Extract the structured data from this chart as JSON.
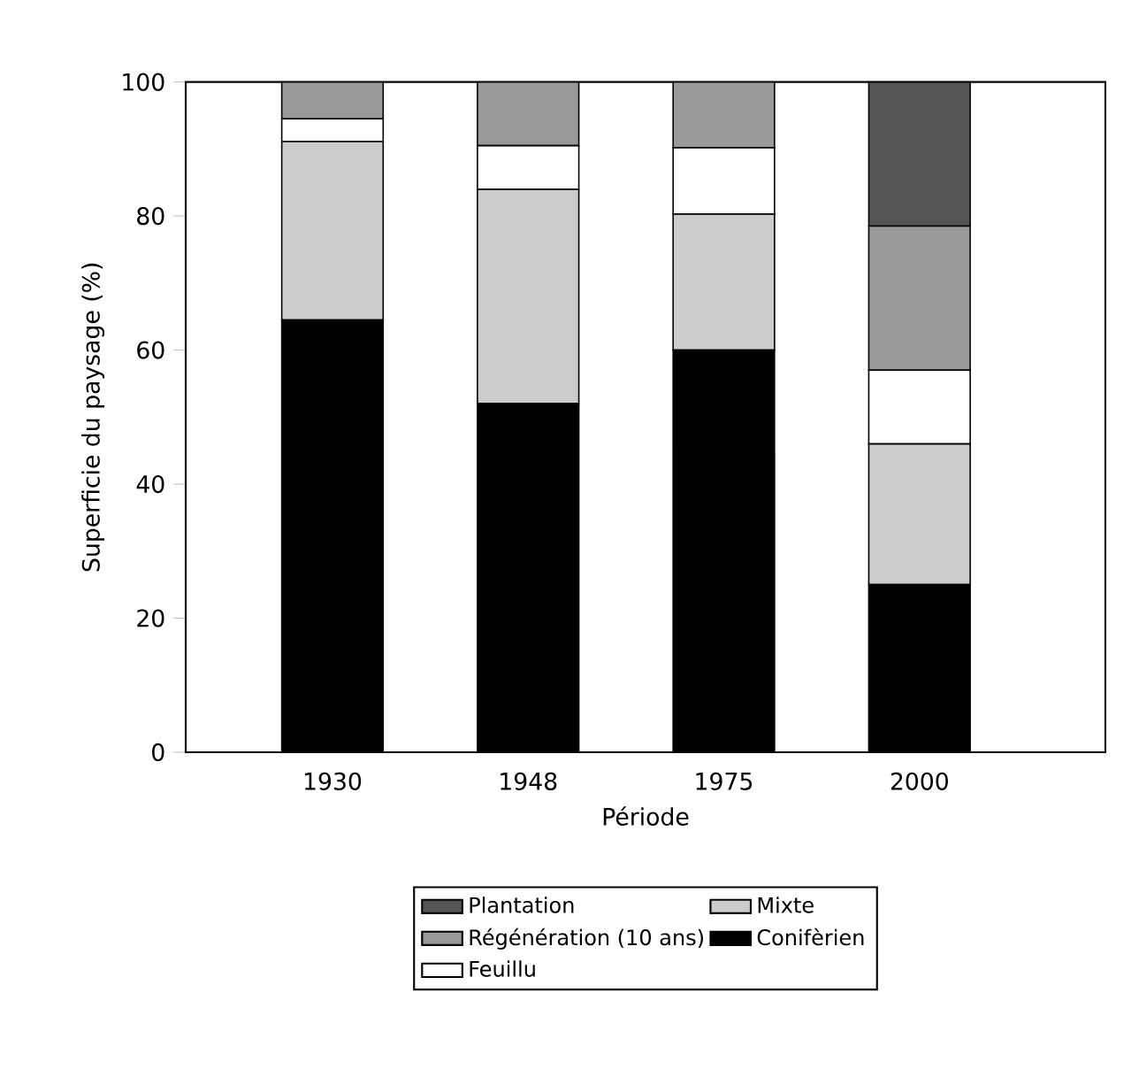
{
  "chart_data": {
    "type": "bar",
    "stacked": true,
    "xlabel": "Période",
    "ylabel": "Superficie du paysage (%)",
    "categories": [
      "1930",
      "1948",
      "1975",
      "2000"
    ],
    "series": [
      {
        "name": "Conifèrien",
        "color": "#000000",
        "values": [
          64.5,
          52,
          60,
          25
        ]
      },
      {
        "name": "Mixte",
        "color": "#cccccc",
        "values": [
          26.6,
          32,
          20.3,
          21
        ]
      },
      {
        "name": "Feuillu",
        "color": "#ffffff",
        "values": [
          3.4,
          6.5,
          9.9,
          11
        ]
      },
      {
        "name": "Régénération (10 ans)",
        "color": "#999999",
        "values": [
          5.5,
          9.5,
          9.8,
          21.5
        ]
      },
      {
        "name": "Plantation",
        "color": "#555555",
        "values": [
          0,
          0,
          0,
          21.5
        ]
      }
    ],
    "ylim": [
      0,
      100
    ],
    "yticks": [
      0,
      20,
      40,
      60,
      80,
      100
    ],
    "grid": false,
    "legend": "bottom"
  }
}
